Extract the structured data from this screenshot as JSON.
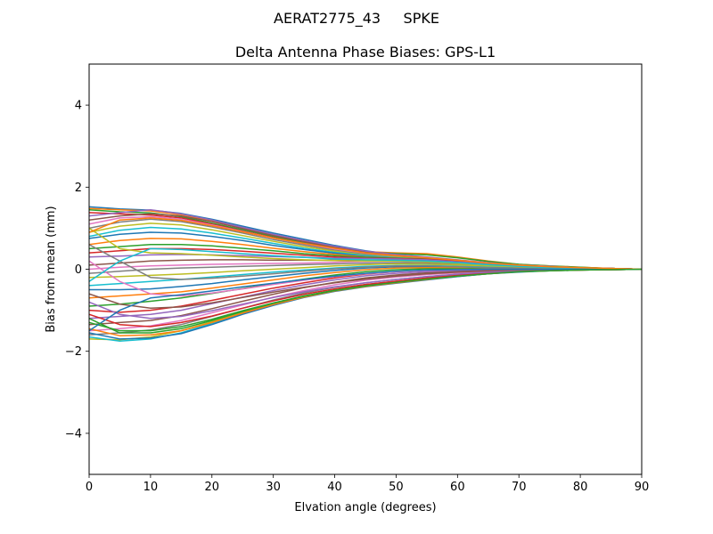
{
  "figure": {
    "suptitle": "AERAT2775_43     SPKE"
  },
  "chart_data": {
    "type": "line",
    "title": "Delta Antenna Phase Biases: GPS-L1",
    "xlabel": "Elvation angle (degrees)",
    "ylabel": "Bias from mean (mm)",
    "xlim": [
      0,
      90
    ],
    "ylim": [
      -5,
      5
    ],
    "xticks": [
      0,
      10,
      20,
      30,
      40,
      50,
      60,
      70,
      80,
      90
    ],
    "yticks": [
      -4,
      -2,
      0,
      2,
      4
    ],
    "grid": false,
    "legend": "none",
    "x": [
      0,
      5,
      10,
      15,
      20,
      25,
      30,
      35,
      40,
      45,
      50,
      55,
      60,
      65,
      70,
      75,
      80,
      85,
      90
    ],
    "series": [
      {
        "values": [
          1.52,
          1.47,
          1.44,
          1.36,
          1.22,
          1.05,
          0.88,
          0.73,
          0.58,
          0.45,
          0.35,
          0.28,
          0.21,
          0.14,
          0.09,
          0.06,
          0.04,
          0.02,
          0.0
        ]
      },
      {
        "values": [
          1.48,
          1.45,
          1.42,
          1.33,
          1.18,
          1.01,
          0.84,
          0.69,
          0.55,
          0.43,
          0.4,
          0.38,
          0.3,
          0.2,
          0.12,
          0.08,
          0.05,
          0.02,
          0.0
        ]
      },
      {
        "values": [
          1.45,
          1.4,
          1.37,
          1.28,
          1.12,
          0.96,
          0.8,
          0.65,
          0.52,
          0.42,
          0.38,
          0.35,
          0.28,
          0.19,
          0.12,
          0.08,
          0.05,
          0.02,
          0.0
        ]
      },
      {
        "values": [
          1.38,
          1.35,
          1.32,
          1.25,
          1.1,
          0.93,
          0.77,
          0.62,
          0.49,
          0.38,
          0.31,
          0.26,
          0.2,
          0.14,
          0.09,
          0.06,
          0.04,
          0.02,
          0.0
        ]
      },
      {
        "values": [
          1.3,
          1.38,
          1.45,
          1.35,
          1.2,
          1.02,
          0.85,
          0.7,
          0.56,
          0.44,
          0.36,
          0.3,
          0.23,
          0.16,
          0.1,
          0.07,
          0.04,
          0.02,
          0.0
        ]
      },
      {
        "values": [
          1.2,
          1.3,
          1.35,
          1.3,
          1.16,
          0.99,
          0.82,
          0.67,
          0.53,
          0.41,
          0.33,
          0.27,
          0.2,
          0.14,
          0.09,
          0.06,
          0.04,
          0.02,
          0.0
        ]
      },
      {
        "values": [
          1.1,
          1.25,
          1.28,
          1.22,
          1.08,
          0.92,
          0.76,
          0.62,
          0.49,
          0.38,
          0.32,
          0.27,
          0.21,
          0.15,
          0.1,
          0.07,
          0.04,
          0.02,
          0.0
        ]
      },
      {
        "values": [
          1.0,
          1.15,
          1.22,
          1.16,
          1.03,
          0.88,
          0.72,
          0.59,
          0.46,
          0.36,
          0.3,
          0.26,
          0.2,
          0.14,
          0.09,
          0.06,
          0.04,
          0.02,
          0.0
        ]
      },
      {
        "values": [
          0.9,
          1.05,
          1.12,
          1.08,
          0.96,
          0.82,
          0.68,
          0.55,
          0.44,
          0.34,
          0.29,
          0.24,
          0.19,
          0.13,
          0.08,
          0.06,
          0.04,
          0.02,
          0.0
        ]
      },
      {
        "values": [
          0.8,
          0.95,
          1.02,
          0.98,
          0.88,
          0.76,
          0.63,
          0.51,
          0.41,
          0.33,
          0.28,
          0.24,
          0.18,
          0.13,
          0.08,
          0.05,
          0.03,
          0.02,
          0.0
        ]
      },
      {
        "values": [
          0.75,
          0.85,
          0.9,
          0.88,
          0.8,
          0.7,
          0.58,
          0.48,
          0.39,
          0.31,
          0.27,
          0.23,
          0.18,
          0.12,
          0.08,
          0.05,
          0.03,
          0.02,
          0.0
        ]
      },
      {
        "values": [
          0.6,
          0.7,
          0.75,
          0.74,
          0.68,
          0.6,
          0.51,
          0.43,
          0.36,
          0.3,
          0.27,
          0.24,
          0.19,
          0.13,
          0.08,
          0.05,
          0.03,
          0.02,
          0.0
        ]
      },
      {
        "values": [
          0.5,
          0.55,
          0.6,
          0.6,
          0.57,
          0.51,
          0.45,
          0.38,
          0.33,
          0.29,
          0.27,
          0.25,
          0.2,
          0.14,
          0.09,
          0.06,
          0.04,
          0.02,
          0.0
        ]
      },
      {
        "values": [
          0.4,
          0.45,
          0.5,
          0.5,
          0.48,
          0.44,
          0.39,
          0.34,
          0.3,
          0.27,
          0.26,
          0.24,
          0.19,
          0.13,
          0.08,
          0.05,
          0.03,
          0.02,
          0.0
        ]
      },
      {
        "values": [
          0.3,
          0.32,
          0.35,
          0.36,
          0.35,
          0.33,
          0.31,
          0.29,
          0.27,
          0.26,
          0.25,
          0.23,
          0.18,
          0.13,
          0.08,
          0.05,
          0.03,
          0.02,
          0.0
        ]
      },
      {
        "values": [
          0.1,
          0.15,
          0.2,
          0.22,
          0.23,
          0.23,
          0.22,
          0.22,
          0.22,
          0.22,
          0.22,
          0.2,
          0.16,
          0.11,
          0.07,
          0.05,
          0.03,
          0.01,
          0.0
        ]
      },
      {
        "values": [
          0.0,
          0.05,
          0.08,
          0.1,
          0.12,
          0.13,
          0.14,
          0.15,
          0.17,
          0.19,
          0.2,
          0.18,
          0.14,
          0.1,
          0.07,
          0.04,
          0.03,
          0.01,
          0.0
        ]
      },
      {
        "values": [
          -0.1,
          -0.05,
          0.0,
          0.03,
          0.05,
          0.07,
          0.09,
          0.11,
          0.13,
          0.15,
          0.16,
          0.15,
          0.12,
          0.09,
          0.06,
          0.04,
          0.02,
          0.01,
          0.0
        ]
      },
      {
        "values": [
          -0.2,
          -0.18,
          -0.15,
          -0.12,
          -0.08,
          -0.04,
          0.0,
          0.04,
          0.08,
          0.11,
          0.13,
          0.12,
          0.1,
          0.07,
          0.05,
          0.03,
          0.02,
          0.01,
          0.0
        ]
      },
      {
        "values": [
          -0.4,
          -0.35,
          -0.3,
          -0.25,
          -0.19,
          -0.13,
          -0.07,
          -0.02,
          0.03,
          0.07,
          0.09,
          0.09,
          0.07,
          0.05,
          0.03,
          0.02,
          0.01,
          0.01,
          0.0
        ]
      },
      {
        "values": [
          -0.5,
          -0.5,
          -0.48,
          -0.42,
          -0.35,
          -0.26,
          -0.18,
          -0.1,
          -0.03,
          0.03,
          0.06,
          0.06,
          0.05,
          0.04,
          0.02,
          0.01,
          0.01,
          0.0,
          0.0
        ]
      },
      {
        "values": [
          -0.7,
          -0.65,
          -0.6,
          -0.55,
          -0.46,
          -0.36,
          -0.26,
          -0.16,
          -0.08,
          -0.01,
          0.03,
          0.04,
          0.03,
          0.02,
          0.01,
          0.01,
          0.0,
          0.0,
          0.0
        ]
      },
      {
        "values": [
          -0.9,
          -0.85,
          -0.78,
          -0.7,
          -0.59,
          -0.47,
          -0.35,
          -0.24,
          -0.14,
          -0.06,
          -0.01,
          0.01,
          0.01,
          0.01,
          0.0,
          0.0,
          0.0,
          0.0,
          0.0
        ]
      },
      {
        "values": [
          -1.0,
          -1.05,
          -1.0,
          -0.9,
          -0.76,
          -0.61,
          -0.46,
          -0.33,
          -0.21,
          -0.12,
          -0.06,
          -0.03,
          -0.02,
          -0.01,
          -0.01,
          0.0,
          0.0,
          0.0,
          0.0
        ]
      },
      {
        "values": [
          -1.2,
          -1.15,
          -1.1,
          -1.0,
          -0.84,
          -0.68,
          -0.52,
          -0.38,
          -0.26,
          -0.16,
          -0.1,
          -0.06,
          -0.04,
          -0.02,
          -0.01,
          -0.01,
          0.0,
          0.0,
          0.0
        ]
      },
      {
        "values": [
          -1.35,
          -1.3,
          -1.25,
          -1.13,
          -0.96,
          -0.78,
          -0.61,
          -0.45,
          -0.32,
          -0.21,
          -0.14,
          -0.09,
          -0.06,
          -0.04,
          -0.02,
          -0.01,
          -0.01,
          0.0,
          0.0
        ]
      },
      {
        "values": [
          -1.5,
          -1.45,
          -1.38,
          -1.25,
          -1.06,
          -0.87,
          -0.68,
          -0.52,
          -0.38,
          -0.27,
          -0.19,
          -0.13,
          -0.09,
          -0.06,
          -0.03,
          -0.02,
          -0.01,
          0.0,
          0.0
        ]
      },
      {
        "values": [
          -1.6,
          -1.55,
          -1.48,
          -1.35,
          -1.15,
          -0.95,
          -0.75,
          -0.58,
          -0.44,
          -0.33,
          -0.25,
          -0.18,
          -0.13,
          -0.08,
          -0.05,
          -0.03,
          -0.02,
          -0.01,
          0.0
        ]
      },
      {
        "values": [
          -1.7,
          -1.72,
          -1.65,
          -1.5,
          -1.28,
          -1.05,
          -0.84,
          -0.66,
          -0.51,
          -0.4,
          -0.31,
          -0.23,
          -0.16,
          -0.1,
          -0.06,
          -0.03,
          -0.02,
          -0.01,
          0.0
        ]
      },
      {
        "values": [
          -1.65,
          -1.75,
          -1.7,
          -1.55,
          -1.32,
          -1.08,
          -0.86,
          -0.68,
          -0.53,
          -0.42,
          -0.33,
          -0.25,
          -0.18,
          -0.11,
          -0.06,
          -0.04,
          -0.02,
          -0.01,
          0.0
        ]
      },
      {
        "values": [
          -1.55,
          -1.7,
          -1.68,
          -1.57,
          -1.35,
          -1.1,
          -0.88,
          -0.69,
          -0.54,
          -0.43,
          -0.34,
          -0.26,
          -0.18,
          -0.11,
          -0.07,
          -0.04,
          -0.02,
          -0.01,
          0.0
        ]
      },
      {
        "values": [
          -1.45,
          -1.62,
          -1.6,
          -1.5,
          -1.3,
          -1.07,
          -0.86,
          -0.68,
          -0.53,
          -0.42,
          -0.33,
          -0.25,
          -0.17,
          -0.11,
          -0.06,
          -0.04,
          -0.02,
          -0.01,
          0.0
        ]
      },
      {
        "values": [
          -1.3,
          -1.5,
          -1.5,
          -1.4,
          -1.22,
          -1.01,
          -0.82,
          -0.65,
          -0.51,
          -0.4,
          -0.31,
          -0.23,
          -0.16,
          -0.1,
          -0.06,
          -0.03,
          -0.02,
          -0.01,
          0.0
        ]
      },
      {
        "values": [
          -1.1,
          -1.35,
          -1.4,
          -1.3,
          -1.14,
          -0.95,
          -0.77,
          -0.61,
          -0.48,
          -0.37,
          -0.29,
          -0.21,
          -0.15,
          -0.09,
          -0.05,
          -0.03,
          -0.02,
          -0.01,
          0.0
        ]
      },
      {
        "values": [
          -0.8,
          -1.1,
          -1.2,
          -1.15,
          -1.01,
          -0.85,
          -0.69,
          -0.55,
          -0.43,
          -0.33,
          -0.25,
          -0.18,
          -0.12,
          -0.07,
          -0.04,
          -0.02,
          -0.01,
          0.0,
          0.0
        ]
      },
      {
        "values": [
          -0.6,
          -0.85,
          -0.95,
          -0.92,
          -0.82,
          -0.69,
          -0.56,
          -0.44,
          -0.33,
          -0.24,
          -0.17,
          -0.11,
          -0.07,
          -0.04,
          -0.02,
          -0.01,
          0.0,
          0.0,
          0.0
        ]
      },
      {
        "values": [
          0.2,
          -0.3,
          -0.6,
          -0.65,
          -0.58,
          -0.48,
          -0.37,
          -0.27,
          -0.18,
          -0.11,
          -0.06,
          -0.03,
          -0.01,
          0.0,
          0.0,
          0.0,
          0.0,
          0.0,
          0.0
        ]
      },
      {
        "values": [
          0.6,
          0.2,
          -0.2,
          -0.25,
          -0.22,
          -0.17,
          -0.11,
          -0.05,
          0.01,
          0.05,
          0.08,
          0.08,
          0.06,
          0.04,
          0.03,
          0.02,
          0.01,
          0.0,
          0.0
        ]
      },
      {
        "values": [
          1.0,
          0.5,
          0.4,
          0.38,
          0.34,
          0.3,
          0.26,
          0.23,
          0.21,
          0.2,
          0.2,
          0.18,
          0.14,
          0.1,
          0.06,
          0.04,
          0.02,
          0.01,
          0.0
        ]
      },
      {
        "values": [
          -0.3,
          0.2,
          0.5,
          0.48,
          0.43,
          0.38,
          0.33,
          0.29,
          0.25,
          0.23,
          0.22,
          0.2,
          0.16,
          0.11,
          0.07,
          0.04,
          0.03,
          0.01,
          0.0
        ]
      },
      {
        "values": [
          -1.5,
          -1.0,
          -0.7,
          -0.62,
          -0.53,
          -0.43,
          -0.34,
          -0.25,
          -0.17,
          -0.1,
          -0.05,
          -0.02,
          -0.01,
          0.0,
          0.0,
          0.0,
          0.0,
          0.0,
          0.0
        ]
      },
      {
        "values": [
          0.9,
          1.2,
          1.25,
          1.19,
          1.06,
          0.91,
          0.76,
          0.63,
          0.51,
          0.4,
          0.33,
          0.28,
          0.22,
          0.15,
          0.1,
          0.06,
          0.04,
          0.02,
          0.0
        ]
      },
      {
        "values": [
          -1.2,
          -1.55,
          -1.55,
          -1.45,
          -1.25,
          -1.03,
          -0.83,
          -0.66,
          -0.52,
          -0.41,
          -0.32,
          -0.24,
          -0.17,
          -0.11,
          -0.06,
          -0.04,
          -0.02,
          -0.01,
          0.0
        ]
      }
    ]
  }
}
